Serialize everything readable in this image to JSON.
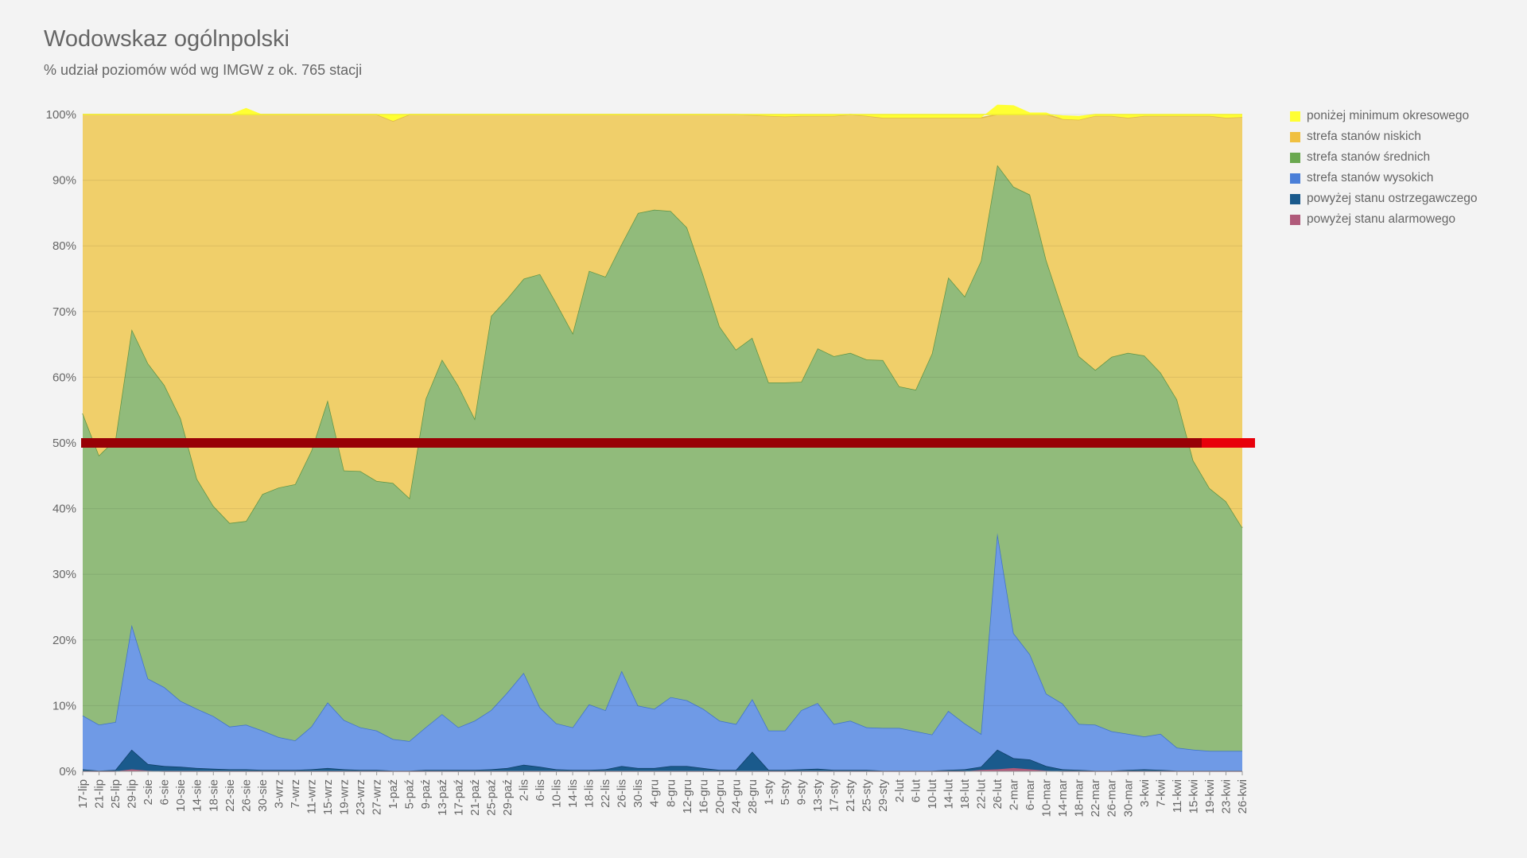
{
  "title": "Wodowskaz ogólnpolski",
  "subtitle": "% udział poziomów wód wg IMGW z ok. 765 stacji",
  "chart_data": {
    "type": "area",
    "stacked": true,
    "ylim": [
      0,
      100
    ],
    "yticks": [
      "0%",
      "10%",
      "20%",
      "30%",
      "40%",
      "50%",
      "60%",
      "70%",
      "80%",
      "90%",
      "100%"
    ],
    "x": [
      "17-lip",
      "21-lip",
      "25-lip",
      "29-lip",
      "2-sie",
      "6-sie",
      "10-sie",
      "14-sie",
      "18-sie",
      "22-sie",
      "26-sie",
      "30-sie",
      "3-wrz",
      "7-wrz",
      "11-wrz",
      "15-wrz",
      "19-wrz",
      "23-wrz",
      "27-wrz",
      "1-paź",
      "5-paź",
      "9-paź",
      "13-paź",
      "17-paź",
      "21-paź",
      "25-paź",
      "29-paź",
      "2-lis",
      "6-lis",
      "10-lis",
      "14-lis",
      "18-lis",
      "22-lis",
      "26-lis",
      "30-lis",
      "4-gru",
      "8-gru",
      "12-gru",
      "16-gru",
      "20-gru",
      "24-gru",
      "28-gru",
      "1-sty",
      "5-sty",
      "9-sty",
      "13-sty",
      "17-sty",
      "21-sty",
      "25-sty",
      "29-sty",
      "2-lut",
      "6-lut",
      "10-lut",
      "14-lut",
      "18-lut",
      "22-lut",
      "26-lut",
      "2-mar",
      "6-mar",
      "10-mar",
      "14-mar",
      "18-mar",
      "22-mar",
      "26-mar",
      "30-mar",
      "3-kwi",
      "7-kwi",
      "11-kwi",
      "15-kwi",
      "19-kwi",
      "23-kwi",
      "26-kwi"
    ],
    "grid": true,
    "legend_position": "right",
    "series": [
      {
        "name": "powyżej stanu alarmowego",
        "color": "#b05a7a",
        "values": [
          0,
          0,
          0,
          0.3,
          0.1,
          0,
          0,
          0,
          0,
          0,
          0,
          0,
          0,
          0,
          0,
          0,
          0,
          0,
          0,
          0,
          0,
          0,
          0,
          0,
          0,
          0,
          0,
          0,
          0,
          0,
          0,
          0,
          0,
          0,
          0,
          0,
          0,
          0,
          0,
          0,
          0,
          0,
          0,
          0,
          0,
          0,
          0,
          0,
          0,
          0,
          0,
          0,
          0,
          0,
          0,
          0.2,
          0.3,
          0.5,
          0.3,
          0.1,
          0,
          0,
          0,
          0,
          0,
          0,
          0,
          0,
          0,
          0,
          0,
          0
        ]
      },
      {
        "name": "powyżej stanu ostrzegawczego",
        "color": "#1a5a8c",
        "values": [
          0.3,
          0.1,
          0.2,
          3.0,
          1.0,
          0.8,
          0.7,
          0.5,
          0.4,
          0.3,
          0.3,
          0.2,
          0.2,
          0.2,
          0.3,
          0.5,
          0.3,
          0.2,
          0.2,
          0.1,
          0.1,
          0.2,
          0.2,
          0.2,
          0.2,
          0.3,
          0.5,
          1.0,
          0.7,
          0.3,
          0.2,
          0.2,
          0.3,
          0.8,
          0.5,
          0.5,
          0.8,
          0.8,
          0.5,
          0.2,
          0.2,
          3.0,
          0.2,
          0.2,
          0.3,
          0.4,
          0.2,
          0.2,
          0.2,
          0.1,
          0.1,
          0.1,
          0.1,
          0.2,
          0.3,
          0.5,
          3.0,
          1.5,
          1.5,
          0.7,
          0.3,
          0.2,
          0.1,
          0.1,
          0.2,
          0.3,
          0.2,
          0.1,
          0.1,
          0.1,
          0.1,
          0.1
        ]
      },
      {
        "name": "strefa stanów wysokich",
        "color": "#6f9ae6",
        "values": [
          8.2,
          7.0,
          7.3,
          19.0,
          13.0,
          12.0,
          10.0,
          9.0,
          8.0,
          6.5,
          6.8,
          6.0,
          5.0,
          4.5,
          6.5,
          10.0,
          7.5,
          6.5,
          6.0,
          4.8,
          4.5,
          6.5,
          8.5,
          6.5,
          7.5,
          9.0,
          11.5,
          14.0,
          9.0,
          7.0,
          6.5,
          10.0,
          9.0,
          14.5,
          9.5,
          9.0,
          10.5,
          10.0,
          9.0,
          7.5,
          7.0,
          8.0,
          6.0,
          6.0,
          9.0,
          10.0,
          7.0,
          7.5,
          6.5,
          6.5,
          6.5,
          6.0,
          5.5,
          9.0,
          7.0,
          5.0,
          33.0,
          19.0,
          16.0,
          11.0,
          10.0,
          7.0,
          7.0,
          6.0,
          5.5,
          5.0,
          5.5,
          3.5,
          3.2,
          3.0,
          3.0,
          3.0
        ]
      },
      {
        "name": "strefa stanów średnich",
        "color": "#91bb7b",
        "values": [
          46,
          41,
          43,
          45,
          48,
          46,
          43,
          35,
          32,
          31,
          31,
          36,
          38,
          39,
          42,
          46,
          38,
          39,
          38,
          39,
          37,
          50,
          54,
          52,
          46,
          60,
          60,
          60,
          66,
          64,
          60,
          66,
          66,
          65,
          75,
          76,
          74,
          72,
          66,
          60,
          57,
          55,
          53,
          53,
          50,
          54,
          56,
          56,
          56,
          56,
          52,
          52,
          58,
          66,
          65,
          72,
          56,
          68,
          70,
          66,
          60,
          56,
          54,
          57,
          58,
          58,
          55,
          53,
          44,
          40,
          38,
          34
        ]
      },
      {
        "name": "strefa stanów niskich",
        "color": "#f0cf6a",
        "values": [
          45.5,
          51.9,
          49.5,
          32.7,
          37.9,
          41.2,
          46.3,
          55.5,
          59.6,
          62.2,
          62.9,
          57.8,
          56.8,
          56.3,
          51.2,
          43.5,
          54.2,
          54.3,
          55.8,
          55.1,
          58.4,
          43.3,
          37.3,
          41.3,
          46.3,
          30.7,
          28.0,
          25.0,
          24.3,
          28.7,
          33.3,
          23.8,
          24.7,
          19.7,
          15.0,
          14.5,
          14.7,
          17.2,
          24.5,
          32.3,
          35.8,
          33.9,
          40.6,
          40.5,
          40.5,
          35.4,
          36.6,
          36.3,
          37.1,
          36.9,
          40.9,
          41.4,
          35.9,
          24.3,
          27.2,
          21.8,
          9.2,
          12.4,
          12.5,
          22.5,
          29.0,
          36.0,
          38.7,
          36.7,
          35.8,
          36.5,
          39.1,
          43.2,
          52.5,
          56.7,
          58.4,
          62.5
        ]
      },
      {
        "name": "poniżej minimum okresowego",
        "color": "#ffff33",
        "values": [
          0.5,
          0.5,
          0.5,
          0.5,
          0.5,
          0.5,
          1.0,
          1.5,
          2.5,
          3.0,
          3.0,
          3.5,
          4.0,
          4.0,
          2.0,
          1.5,
          1.5,
          1.5,
          2.0,
          2.0,
          1.0,
          0.5,
          0.5,
          0.5,
          0.5,
          0.5,
          0.5,
          0.5,
          0.5,
          0.5,
          0.5,
          0.5,
          0.5,
          0.5,
          0.5,
          0.5,
          0.5,
          0.5,
          0.5,
          0.5,
          0.5,
          0.5,
          0.5,
          0.5,
          0.5,
          0.5,
          0.5,
          0.5,
          0.5,
          0.5,
          0.5,
          0.5,
          0.5,
          0.5,
          0.5,
          0.5,
          0.5,
          0.5,
          0.5,
          0.5,
          0.5,
          0.5,
          0.5,
          0.5,
          0.5,
          0.5,
          0.5,
          0.5,
          0.5,
          0.5,
          0.5,
          0.5
        ]
      }
    ],
    "reference_line": {
      "y": 50,
      "color": "#e8000b"
    }
  }
}
